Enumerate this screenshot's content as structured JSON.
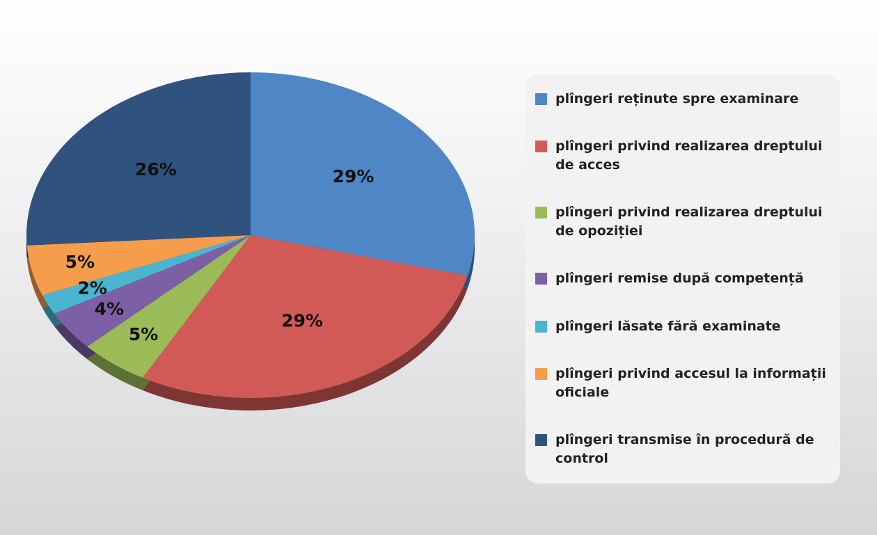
{
  "chart_data": {
    "type": "pie",
    "categories": [
      "plîngeri reținute spre examinare",
      "plîngeri privind realizarea dreptului de acces",
      "plîngeri privind realizarea dreptului de opoziției",
      "plîngeri remise după competență",
      "plîngeri lăsate fără examinate",
      "plîngeri privind accesul la informații oficiale",
      "plîngeri transmise în procedură de control"
    ],
    "values": [
      29,
      29,
      5,
      4,
      2,
      5,
      26
    ],
    "value_labels": [
      "29%",
      "29%",
      "5%",
      "4%",
      "2%",
      "5%",
      "26%"
    ],
    "colors": [
      "#4f86c6",
      "#d25a56",
      "#9bbb59",
      "#7d5fa6",
      "#4bb4d0",
      "#f59d4a",
      "#30527f"
    ],
    "legend": "right"
  }
}
